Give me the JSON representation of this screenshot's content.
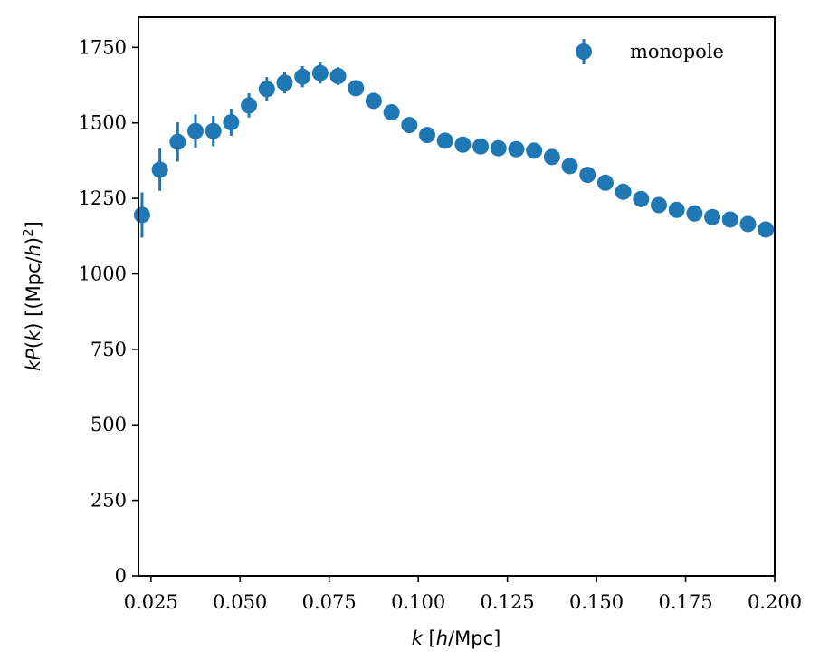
{
  "chart_data": {
    "type": "scatter",
    "xlabel": "k [h/Mpc]",
    "ylabel": "kP(k) [(Mpc/h)²]",
    "xlim": [
      0.0215,
      0.2
    ],
    "ylim": [
      0,
      1850
    ],
    "x_ticks": [
      0.025,
      0.05,
      0.075,
      0.1,
      0.125,
      0.15,
      0.175,
      0.2
    ],
    "x_tick_labels": [
      "0.025",
      "0.050",
      "0.075",
      "0.100",
      "0.125",
      "0.150",
      "0.175",
      "0.200"
    ],
    "y_ticks": [
      0,
      250,
      500,
      750,
      1000,
      1250,
      1500,
      1750
    ],
    "y_tick_labels": [
      "0",
      "250",
      "500",
      "750",
      "1000",
      "1250",
      "1500",
      "1750"
    ],
    "grid": false,
    "legend_position": "top-right",
    "series": [
      {
        "name": "monopole",
        "color": "#1f77b4",
        "marker": "circle-with-errorbar",
        "points": [
          {
            "x": 0.0225,
            "y": 1195,
            "err": 75
          },
          {
            "x": 0.0275,
            "y": 1345,
            "err": 70
          },
          {
            "x": 0.0325,
            "y": 1437,
            "err": 65
          },
          {
            "x": 0.0375,
            "y": 1473,
            "err": 55
          },
          {
            "x": 0.0425,
            "y": 1473,
            "err": 50
          },
          {
            "x": 0.0475,
            "y": 1502,
            "err": 45
          },
          {
            "x": 0.0525,
            "y": 1558,
            "err": 40
          },
          {
            "x": 0.0575,
            "y": 1612,
            "err": 40
          },
          {
            "x": 0.0625,
            "y": 1633,
            "err": 35
          },
          {
            "x": 0.0675,
            "y": 1653,
            "err": 35
          },
          {
            "x": 0.0725,
            "y": 1665,
            "err": 35
          },
          {
            "x": 0.0775,
            "y": 1655,
            "err": 30
          },
          {
            "x": 0.0825,
            "y": 1615,
            "err": 25
          },
          {
            "x": 0.0875,
            "y": 1573,
            "err": 20
          },
          {
            "x": 0.0925,
            "y": 1535,
            "err": 18
          },
          {
            "x": 0.0975,
            "y": 1493,
            "err": 15
          },
          {
            "x": 0.1025,
            "y": 1460,
            "err": 12
          },
          {
            "x": 0.1075,
            "y": 1441,
            "err": 10
          },
          {
            "x": 0.1125,
            "y": 1428,
            "err": 8
          },
          {
            "x": 0.1175,
            "y": 1422,
            "err": 8
          },
          {
            "x": 0.1225,
            "y": 1416,
            "err": 7
          },
          {
            "x": 0.1275,
            "y": 1413,
            "err": 6
          },
          {
            "x": 0.1325,
            "y": 1408,
            "err": 6
          },
          {
            "x": 0.1375,
            "y": 1387,
            "err": 5
          },
          {
            "x": 0.1425,
            "y": 1357,
            "err": 5
          },
          {
            "x": 0.1475,
            "y": 1328,
            "err": 5
          },
          {
            "x": 0.1525,
            "y": 1302,
            "err": 4
          },
          {
            "x": 0.1575,
            "y": 1272,
            "err": 4
          },
          {
            "x": 0.1625,
            "y": 1248,
            "err": 4
          },
          {
            "x": 0.1675,
            "y": 1228,
            "err": 4
          },
          {
            "x": 0.1725,
            "y": 1212,
            "err": 4
          },
          {
            "x": 0.1775,
            "y": 1200,
            "err": 3
          },
          {
            "x": 0.1825,
            "y": 1188,
            "err": 3
          },
          {
            "x": 0.1875,
            "y": 1180,
            "err": 3
          },
          {
            "x": 0.1925,
            "y": 1165,
            "err": 3
          },
          {
            "x": 0.1975,
            "y": 1147,
            "err": 3
          }
        ]
      }
    ]
  }
}
